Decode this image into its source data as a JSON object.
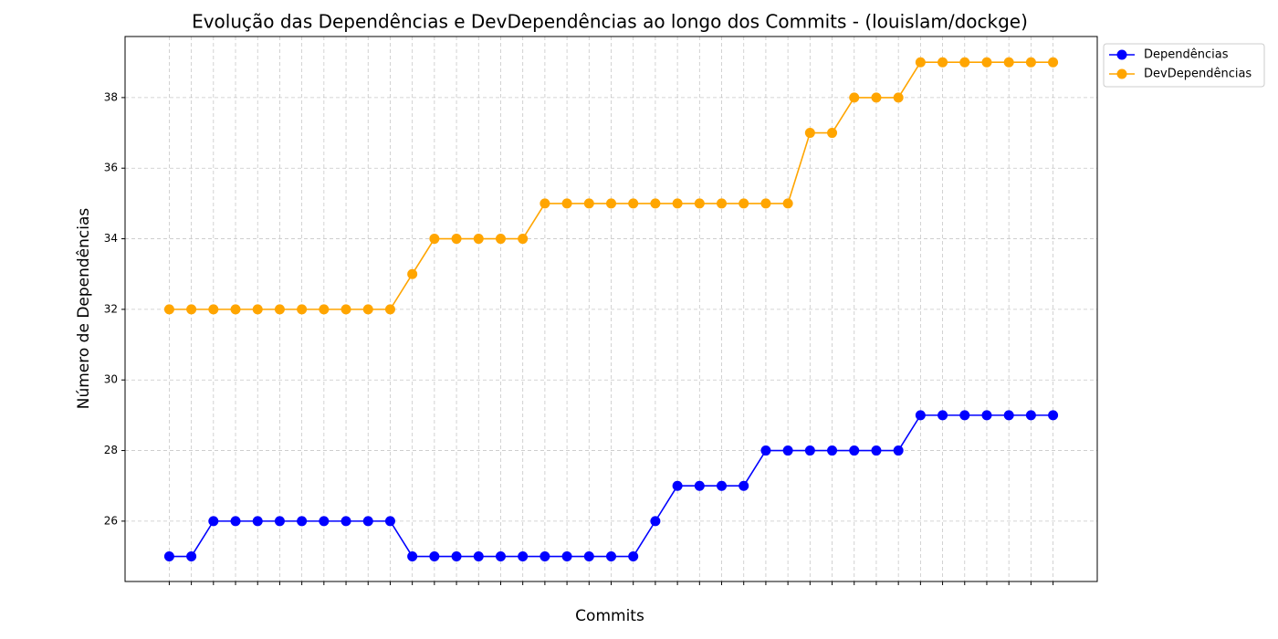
{
  "chart_data": {
    "type": "line",
    "title": "Evolução das Dependências e DevDependências ao longo dos Commits - (louislam/dockge)",
    "x_label": "Commits",
    "y_label": "Número de Dependências",
    "categories": [
      null,
      null,
      null,
      null,
      null,
      null,
      null,
      null,
      null,
      null,
      null,
      null,
      null,
      null,
      null,
      null,
      null,
      null,
      null,
      null,
      null,
      null,
      null,
      null,
      null,
      null,
      null,
      null,
      null,
      null,
      null,
      null,
      null,
      null,
      null,
      null,
      null,
      null,
      null,
      null,
      null
    ],
    "series": [
      {
        "name": "Dependências",
        "color": "#0000ff",
        "values": [
          25,
          25,
          26,
          26,
          26,
          26,
          26,
          26,
          26,
          26,
          26,
          25,
          25,
          25,
          25,
          25,
          25,
          25,
          25,
          25,
          25,
          25,
          26,
          27,
          27,
          27,
          27,
          28,
          28,
          28,
          28,
          28,
          28,
          28,
          29,
          29,
          29,
          29,
          29,
          29,
          29
        ]
      },
      {
        "name": "DevDependências",
        "color": "#ffa500",
        "values": [
          32,
          32,
          32,
          32,
          32,
          32,
          32,
          32,
          32,
          32,
          32,
          33,
          34,
          34,
          34,
          34,
          34,
          35,
          35,
          35,
          35,
          35,
          35,
          35,
          35,
          35,
          35,
          35,
          35,
          37,
          37,
          38,
          38,
          38,
          39,
          39,
          39,
          39,
          39,
          39,
          39
        ]
      }
    ],
    "ylim": [
      24.29,
      39.73
    ],
    "yticks": [
      26,
      28,
      30,
      32,
      34,
      36,
      38
    ],
    "grid": true,
    "legend": "outside upper right"
  }
}
